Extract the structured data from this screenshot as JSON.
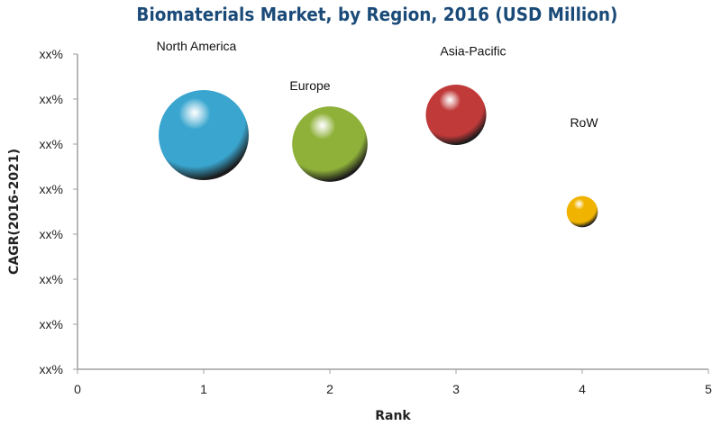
{
  "chart_data": {
    "type": "bubble",
    "title": "Biomaterials Market, by Region, 2016 (USD Million)",
    "xlabel": "Rank",
    "ylabel": "CAGR(2016-2021)",
    "xlim": [
      0,
      5
    ],
    "x_ticks": [
      "0",
      "1",
      "2",
      "3",
      "4",
      "5"
    ],
    "y_ticks": [
      "xx%",
      "xx%",
      "xx%",
      "xx%",
      "xx%",
      "xx%",
      "xx%",
      "xx%"
    ],
    "y_note_levels": [
      0,
      7
    ],
    "grid": false,
    "legend": "none",
    "series": [
      {
        "name": "North America",
        "x": 1,
        "y": 5.2,
        "size": 1.0,
        "color": "#3aa6cf"
      },
      {
        "name": "Europe",
        "x": 2,
        "y": 5.0,
        "size": 0.7,
        "color": "#8fb13a"
      },
      {
        "name": "Asia-Pacific",
        "x": 3,
        "y": 5.65,
        "size": 0.45,
        "color": "#c03a3a"
      },
      {
        "name": "RoW",
        "x": 4,
        "y": 3.5,
        "size": 0.12,
        "color": "#f0b400"
      }
    ]
  }
}
